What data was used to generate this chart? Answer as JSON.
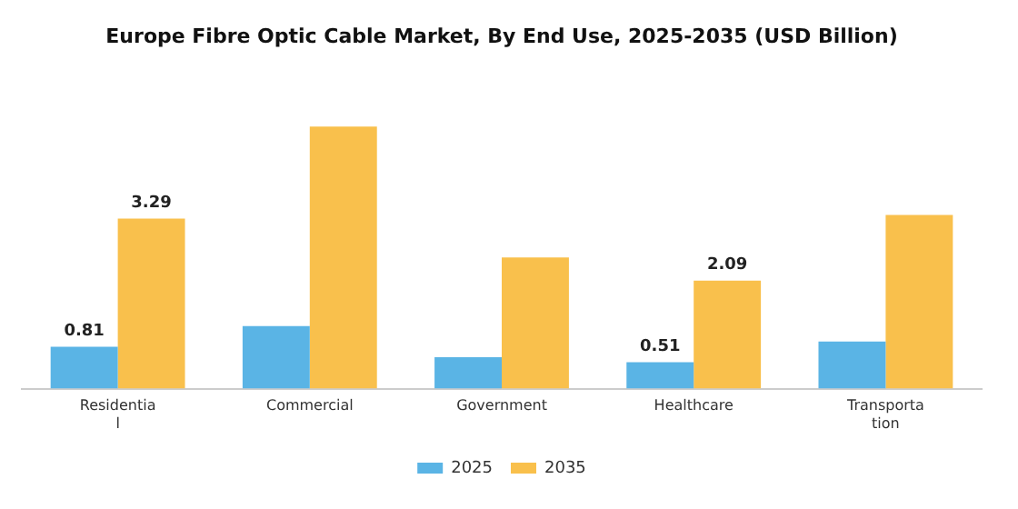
{
  "chart_data": {
    "type": "bar",
    "title": "Europe Fibre Optic Cable Market, By End Use, 2025-2035 (USD Billion)",
    "categories": [
      "Residential",
      "Commercial",
      "Government",
      "Healthcare",
      "Transportation"
    ],
    "series": [
      {
        "name": "2025",
        "color": "#5ab4e5",
        "values": [
          0.81,
          1.21,
          0.61,
          0.51,
          0.91
        ],
        "value_labels": [
          "0.81",
          null,
          null,
          "0.51",
          null
        ]
      },
      {
        "name": "2035",
        "color": "#f9c04c",
        "values": [
          3.29,
          5.07,
          2.54,
          2.09,
          3.36
        ],
        "value_labels": [
          "3.29",
          null,
          null,
          "2.09",
          null
        ]
      }
    ],
    "legend": "bottom",
    "grid": false
  }
}
